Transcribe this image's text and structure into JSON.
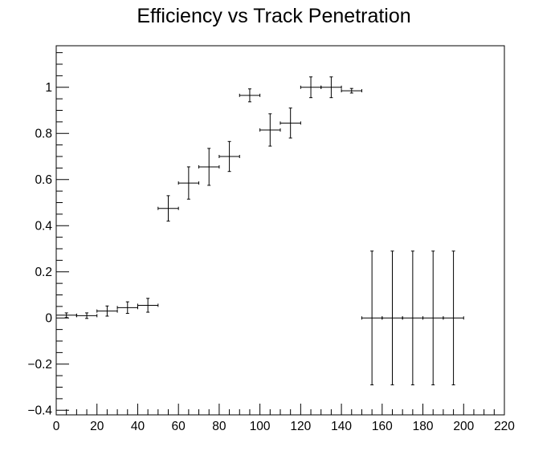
{
  "chart_data": {
    "type": "scatter",
    "title": "Efficiency vs Track Penetration",
    "xlabel": "",
    "ylabel": "",
    "xlim": [
      0,
      220
    ],
    "ylim": [
      -0.42,
      1.18
    ],
    "grid": false,
    "x_ticks": [
      0,
      20,
      40,
      60,
      80,
      100,
      120,
      140,
      160,
      180,
      200,
      220
    ],
    "y_ticks": [
      -0.4,
      -0.2,
      0,
      0.2,
      0.4,
      0.6,
      0.8,
      1
    ],
    "x_tick_labels": [
      "0",
      "20",
      "40",
      "60",
      "80",
      "100",
      "120",
      "140",
      "160",
      "180",
      "200",
      "220"
    ],
    "y_tick_labels": [
      "−0.4",
      "−0.2",
      "0",
      "0.2",
      "0.4",
      "0.6",
      "0.8",
      "1"
    ],
    "series": [
      {
        "points": [
          {
            "x": 5,
            "xerr": 5,
            "y": 0.012,
            "yerr": 0.01
          },
          {
            "x": 15,
            "xerr": 5,
            "y": 0.01,
            "yerr": 0.012
          },
          {
            "x": 25,
            "xerr": 5,
            "y": 0.03,
            "yerr": 0.022
          },
          {
            "x": 35,
            "xerr": 5,
            "y": 0.045,
            "yerr": 0.025
          },
          {
            "x": 45,
            "xerr": 5,
            "y": 0.055,
            "yerr": 0.03
          },
          {
            "x": 55,
            "xerr": 5,
            "y": 0.475,
            "yerr": 0.055
          },
          {
            "x": 65,
            "xerr": 5,
            "y": 0.585,
            "yerr": 0.07
          },
          {
            "x": 75,
            "xerr": 5,
            "y": 0.655,
            "yerr": 0.08
          },
          {
            "x": 85,
            "xerr": 5,
            "y": 0.7,
            "yerr": 0.065
          },
          {
            "x": 95,
            "xerr": 5,
            "y": 0.965,
            "yerr": 0.028
          },
          {
            "x": 105,
            "xerr": 5,
            "y": 0.815,
            "yerr": 0.07
          },
          {
            "x": 115,
            "xerr": 5,
            "y": 0.845,
            "yerr": 0.065
          },
          {
            "x": 125,
            "xerr": 5,
            "y": 1.0,
            "yerr": 0.045
          },
          {
            "x": 135,
            "xerr": 5,
            "y": 1.0,
            "yerr": 0.045
          },
          {
            "x": 145,
            "xerr": 5,
            "y": 0.985,
            "yerr": 0.01
          },
          {
            "x": 155,
            "xerr": 5,
            "y": 0.0,
            "yerr": 0.29
          },
          {
            "x": 165,
            "xerr": 5,
            "y": 0.0,
            "yerr": 0.29
          },
          {
            "x": 175,
            "xerr": 5,
            "y": 0.0,
            "yerr": 0.29
          },
          {
            "x": 185,
            "xerr": 5,
            "y": 0.0,
            "yerr": 0.29
          },
          {
            "x": 195,
            "xerr": 5,
            "y": 0.0,
            "yerr": 0.29
          }
        ]
      }
    ]
  }
}
